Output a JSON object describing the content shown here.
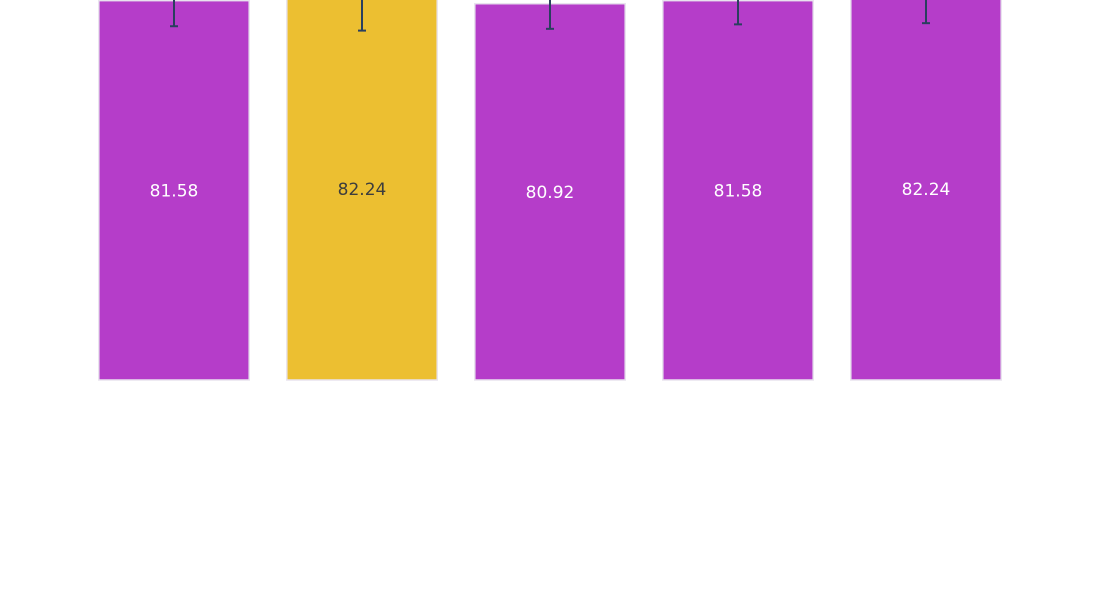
{
  "chart_data": {
    "type": "bar",
    "categories": [
      "",
      "",
      "",
      "",
      ""
    ],
    "values": [
      81.58,
      82.24,
      80.92,
      81.58,
      82.24
    ],
    "value_labels": [
      "81.58",
      "82.24",
      "80.92",
      "81.58",
      "82.24"
    ],
    "error_plus": [
      5.5,
      7.1,
      5.4,
      5.1,
      5.5
    ],
    "error_minus": [
      5.5,
      7.1,
      5.4,
      5.1,
      5.5
    ],
    "highlight_index": 1,
    "colors": {
      "bar": "#b53dc9",
      "highlight": "#ecbf31",
      "bar_stroke": "#e8e3ee",
      "error": "#2a3f5f",
      "label_on_bar": "#ffffff",
      "label_on_highlight": "#3d3d3d"
    },
    "title": "",
    "xlabel": "",
    "ylabel": "",
    "ylim": [
      0,
      100
    ],
    "grid": false,
    "legend": "none"
  }
}
